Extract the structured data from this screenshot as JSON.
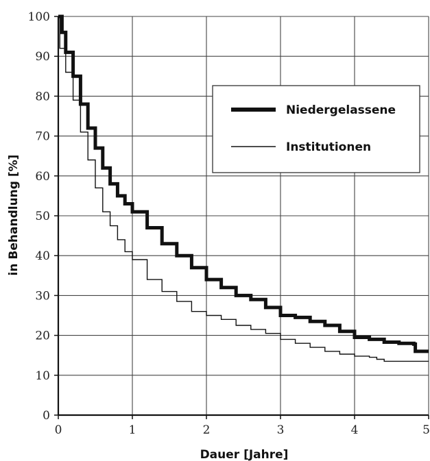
{
  "chart_data": {
    "type": "line",
    "title": "",
    "xlabel": "Dauer [Jahre]",
    "ylabel": "in Behandlung [%]",
    "xlim": [
      0,
      5
    ],
    "ylim": [
      0,
      100
    ],
    "x_ticks": [
      "0",
      "1",
      "2",
      "3",
      "4",
      "5"
    ],
    "y_ticks": [
      "0",
      "10",
      "20",
      "30",
      "40",
      "50",
      "60",
      "70",
      "80",
      "90",
      "100"
    ],
    "grid": true,
    "legend_position": "top-right",
    "series": [
      {
        "name": "Niedergelassene",
        "style": "thick",
        "color": "#111111",
        "x": [
          0,
          0.05,
          0.1,
          0.2,
          0.3,
          0.4,
          0.5,
          0.6,
          0.7,
          0.8,
          0.9,
          1.0,
          1.2,
          1.4,
          1.6,
          1.8,
          2.0,
          2.2,
          2.4,
          2.6,
          2.8,
          3.0,
          3.2,
          3.4,
          3.6,
          3.8,
          4.0,
          4.2,
          4.4,
          4.6,
          4.8,
          4.82,
          5.0
        ],
        "y": [
          100,
          96,
          91,
          85,
          78,
          72,
          67,
          62,
          58,
          55,
          53,
          51,
          47,
          43,
          40,
          37,
          34,
          32,
          30,
          29,
          27,
          25,
          24.5,
          23.5,
          22.5,
          21,
          19.5,
          19,
          18.3,
          18,
          17.8,
          16,
          16
        ]
      },
      {
        "name": "Institutionen",
        "style": "thin",
        "color": "#111111",
        "x": [
          0,
          0.02,
          0.1,
          0.2,
          0.3,
          0.4,
          0.5,
          0.6,
          0.7,
          0.8,
          0.9,
          1.0,
          1.2,
          1.4,
          1.6,
          1.8,
          2.0,
          2.2,
          2.4,
          2.6,
          2.8,
          3.0,
          3.2,
          3.4,
          3.6,
          3.8,
          4.0,
          4.2,
          4.3,
          4.4,
          4.6,
          5.0
        ],
        "y": [
          100,
          92,
          86,
          79,
          71,
          64,
          57,
          51,
          47.5,
          44,
          41,
          39,
          34,
          31,
          28.5,
          26,
          25,
          24,
          22.5,
          21.5,
          20.5,
          19,
          18,
          17,
          16,
          15.3,
          14.8,
          14.5,
          14,
          13.5,
          13.5,
          13.5
        ]
      }
    ]
  }
}
